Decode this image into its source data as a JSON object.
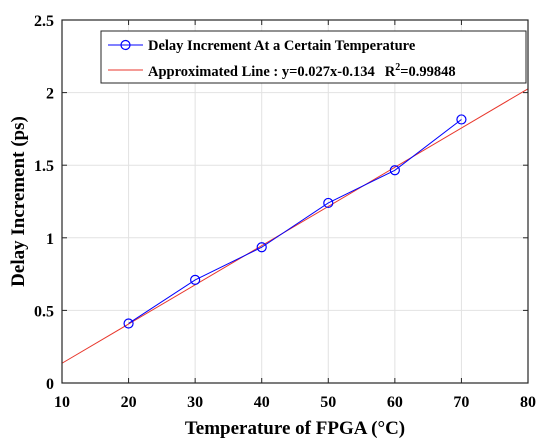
{
  "chart_data": {
    "type": "line",
    "xlabel": "Temperature of FPGA (°C)",
    "ylabel": "Delay Increment (ps)",
    "xlim": [
      10,
      80
    ],
    "ylim": [
      0,
      2.5
    ],
    "xticks": [
      "10",
      "20",
      "30",
      "40",
      "50",
      "60",
      "70",
      "80"
    ],
    "yticks": [
      "0",
      "0.5",
      "1",
      "1.5",
      "2",
      "2.5"
    ],
    "grid": true,
    "legend_position": "top",
    "series": [
      {
        "name": "Delay Increment At a Certain Temperature",
        "kind": "line-marker",
        "color": "#0000ff",
        "x": [
          20,
          30,
          40,
          50,
          60,
          70
        ],
        "y": [
          0.41,
          0.71,
          0.935,
          1.24,
          1.465,
          1.815
        ]
      },
      {
        "name": "Approximated Line : y=0.027x-0.134",
        "name_extra": "R",
        "name_sup": "2",
        "name_tail": "=0.99848",
        "kind": "line",
        "color": "#e8372c",
        "slope": 0.027,
        "intercept": -0.134
      }
    ]
  }
}
